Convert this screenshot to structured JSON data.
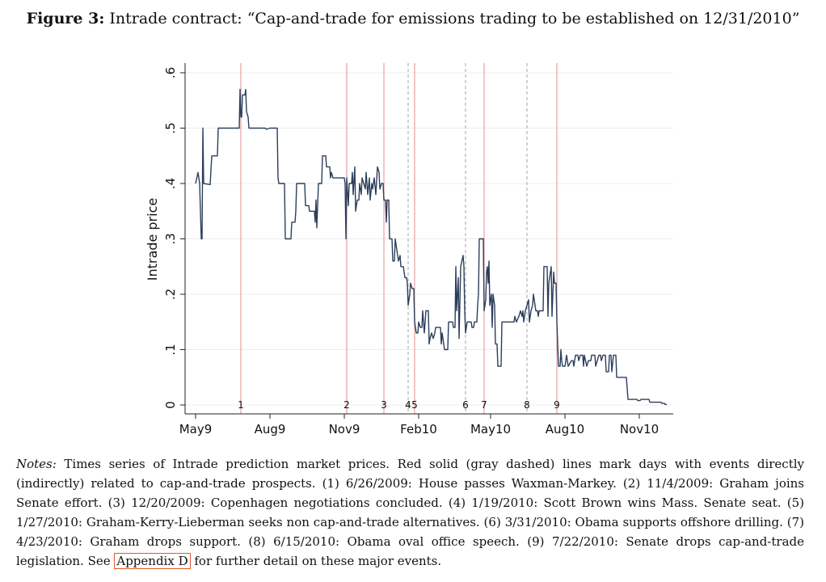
{
  "caption": {
    "label": "Figure 3:",
    "text": "Intrade contract: “Cap-and-trade for emissions trading to be established on 12/31/2010”"
  },
  "chart_data": {
    "type": "line",
    "ylabel": "Intrade price",
    "xlabel": "",
    "ylim": [
      0,
      0.62
    ],
    "yticks": [
      0,
      0.1,
      0.2,
      0.3,
      0.4,
      0.5,
      0.6
    ],
    "ytick_labels": [
      "0",
      ".1",
      ".2",
      ".3",
      ".4",
      ".5",
      ".6"
    ],
    "xlim": [
      0,
      590
    ],
    "xticks": [
      {
        "label": "May9",
        "day": 0
      },
      {
        "label": "Aug9",
        "day": 92
      },
      {
        "label": "Nov9",
        "day": 184
      },
      {
        "label": "Feb10",
        "day": 276
      },
      {
        "label": "May10",
        "day": 365
      },
      {
        "label": "Aug10",
        "day": 457
      },
      {
        "label": "Nov10",
        "day": 549
      }
    ],
    "events": [
      {
        "label": "1",
        "day": 56,
        "style": "solid",
        "color": "#e8a0a0"
      },
      {
        "label": "2",
        "day": 187,
        "style": "solid",
        "color": "#e8a0a0"
      },
      {
        "label": "3",
        "day": 233,
        "style": "solid",
        "color": "#e8a0a0"
      },
      {
        "label": "4",
        "day": 263,
        "style": "dashed",
        "color": "#b4b4b4"
      },
      {
        "label": "5",
        "day": 271,
        "style": "solid",
        "color": "#e8a0a0"
      },
      {
        "label": "6",
        "day": 334,
        "style": "dashed",
        "color": "#b4b4b4"
      },
      {
        "label": "7",
        "day": 357,
        "style": "solid",
        "color": "#e8a0a0"
      },
      {
        "label": "8",
        "day": 410,
        "style": "dashed",
        "color": "#b4b4b4"
      },
      {
        "label": "9",
        "day": 447,
        "style": "solid",
        "color": "#e8a0a0"
      }
    ],
    "line_color": "#2c3e5c",
    "series": [
      {
        "name": "Intrade price",
        "points": [
          [
            0,
            0.4
          ],
          [
            3,
            0.42
          ],
          [
            5,
            0.4
          ],
          [
            7,
            0.3
          ],
          [
            8,
            0.3
          ],
          [
            9,
            0.5
          ],
          [
            10,
            0.4
          ],
          [
            18,
            0.398
          ],
          [
            20,
            0.45
          ],
          [
            27,
            0.45
          ],
          [
            28,
            0.5
          ],
          [
            45,
            0.5
          ],
          [
            48,
            0.5
          ],
          [
            54,
            0.5
          ],
          [
            55,
            0.57
          ],
          [
            56,
            0.52
          ],
          [
            57,
            0.52
          ],
          [
            58,
            0.56
          ],
          [
            61,
            0.56
          ],
          [
            62,
            0.57
          ],
          [
            63,
            0.53
          ],
          [
            65,
            0.52
          ],
          [
            66,
            0.5
          ],
          [
            86,
            0.5
          ],
          [
            88,
            0.498
          ],
          [
            92,
            0.5
          ],
          [
            101,
            0.5
          ],
          [
            102,
            0.41
          ],
          [
            103,
            0.4
          ],
          [
            110,
            0.4
          ],
          [
            111,
            0.3
          ],
          [
            118,
            0.3
          ],
          [
            119,
            0.33
          ],
          [
            123,
            0.33
          ],
          [
            124,
            0.35
          ],
          [
            125,
            0.4
          ],
          [
            135,
            0.4
          ],
          [
            136,
            0.36
          ],
          [
            140,
            0.36
          ],
          [
            141,
            0.35
          ],
          [
            147,
            0.35
          ],
          [
            148,
            0.33
          ],
          [
            149,
            0.37
          ],
          [
            150,
            0.32
          ],
          [
            152,
            0.4
          ],
          [
            156,
            0.4
          ],
          [
            157,
            0.45
          ],
          [
            161,
            0.45
          ],
          [
            162,
            0.43
          ],
          [
            166,
            0.43
          ],
          [
            167,
            0.41
          ],
          [
            168,
            0.42
          ],
          [
            170,
            0.41
          ],
          [
            184,
            0.41
          ],
          [
            185,
            0.4
          ],
          [
            186,
            0.3
          ],
          [
            187,
            0.41
          ],
          [
            189,
            0.36
          ],
          [
            190,
            0.4
          ],
          [
            193,
            0.4
          ],
          [
            194,
            0.42
          ],
          [
            195,
            0.38
          ],
          [
            197,
            0.43
          ],
          [
            198,
            0.35
          ],
          [
            200,
            0.37
          ],
          [
            202,
            0.37
          ],
          [
            203,
            0.4
          ],
          [
            205,
            0.38
          ],
          [
            206,
            0.41
          ],
          [
            210,
            0.39
          ],
          [
            211,
            0.42
          ],
          [
            213,
            0.38
          ],
          [
            215,
            0.41
          ],
          [
            216,
            0.37
          ],
          [
            218,
            0.4
          ],
          [
            219,
            0.39
          ],
          [
            221,
            0.41
          ],
          [
            223,
            0.38
          ],
          [
            225,
            0.43
          ],
          [
            227,
            0.42
          ],
          [
            228,
            0.39
          ],
          [
            230,
            0.4
          ],
          [
            232,
            0.4
          ],
          [
            233,
            0.37
          ],
          [
            235,
            0.37
          ],
          [
            236,
            0.33
          ],
          [
            237,
            0.37
          ],
          [
            239,
            0.37
          ],
          [
            240,
            0.3
          ],
          [
            243,
            0.3
          ],
          [
            244,
            0.26
          ],
          [
            246,
            0.26
          ],
          [
            247,
            0.3
          ],
          [
            249,
            0.28
          ],
          [
            251,
            0.26
          ],
          [
            253,
            0.27
          ],
          [
            254,
            0.25
          ],
          [
            257,
            0.25
          ],
          [
            259,
            0.23
          ],
          [
            261,
            0.23
          ],
          [
            262,
            0.22
          ],
          [
            263,
            0.18
          ],
          [
            265,
            0.2
          ],
          [
            266,
            0.22
          ],
          [
            268,
            0.21
          ],
          [
            270,
            0.21
          ],
          [
            271,
            0.15
          ],
          [
            273,
            0.13
          ],
          [
            275,
            0.13
          ],
          [
            276,
            0.15
          ],
          [
            278,
            0.14
          ],
          [
            280,
            0.14
          ],
          [
            281,
            0.17
          ],
          [
            283,
            0.13
          ],
          [
            285,
            0.17
          ],
          [
            288,
            0.17
          ],
          [
            289,
            0.11
          ],
          [
            290,
            0.12
          ],
          [
            292,
            0.13
          ],
          [
            294,
            0.12
          ],
          [
            296,
            0.13
          ],
          [
            297,
            0.14
          ],
          [
            303,
            0.14
          ],
          [
            304,
            0.11
          ],
          [
            305,
            0.13
          ],
          [
            308,
            0.1
          ],
          [
            312,
            0.1
          ],
          [
            313,
            0.15
          ],
          [
            318,
            0.15
          ],
          [
            319,
            0.14
          ],
          [
            321,
            0.14
          ],
          [
            322,
            0.25
          ],
          [
            323,
            0.17
          ],
          [
            325,
            0.23
          ],
          [
            326,
            0.12
          ],
          [
            328,
            0.25
          ],
          [
            331,
            0.27
          ],
          [
            332,
            0.25
          ],
          [
            333,
            0.17
          ],
          [
            334,
            0.13
          ],
          [
            336,
            0.15
          ],
          [
            341,
            0.15
          ],
          [
            342,
            0.14
          ],
          [
            344,
            0.14
          ],
          [
            345,
            0.15
          ],
          [
            348,
            0.15
          ],
          [
            349,
            0.18
          ],
          [
            350,
            0.2
          ],
          [
            351,
            0.3
          ],
          [
            356,
            0.3
          ],
          [
            357,
            0.17
          ],
          [
            359,
            0.19
          ],
          [
            360,
            0.24
          ],
          [
            361,
            0.25
          ],
          [
            362,
            0.22
          ],
          [
            363,
            0.26
          ],
          [
            364,
            0.18
          ],
          [
            366,
            0.2
          ],
          [
            367,
            0.14
          ],
          [
            368,
            0.2
          ],
          [
            370,
            0.18
          ],
          [
            371,
            0.11
          ],
          [
            373,
            0.11
          ],
          [
            374,
            0.07
          ],
          [
            378,
            0.07
          ],
          [
            379,
            0.15
          ],
          [
            385,
            0.15
          ],
          [
            387,
            0.15
          ],
          [
            394,
            0.15
          ],
          [
            395,
            0.16
          ],
          [
            397,
            0.15
          ],
          [
            400,
            0.16
          ],
          [
            402,
            0.17
          ],
          [
            404,
            0.16
          ],
          [
            405,
            0.17
          ],
          [
            406,
            0.15
          ],
          [
            408,
            0.17
          ],
          [
            412,
            0.19
          ],
          [
            413,
            0.15
          ],
          [
            415,
            0.17
          ],
          [
            417,
            0.18
          ],
          [
            418,
            0.2
          ],
          [
            421,
            0.17
          ],
          [
            423,
            0.17
          ],
          [
            424,
            0.16
          ],
          [
            425,
            0.17
          ],
          [
            430,
            0.17
          ],
          [
            431,
            0.25
          ],
          [
            435,
            0.25
          ],
          [
            436,
            0.16
          ],
          [
            437,
            0.22
          ],
          [
            440,
            0.25
          ],
          [
            441,
            0.16
          ],
          [
            443,
            0.24
          ],
          [
            444,
            0.22
          ],
          [
            446,
            0.22
          ],
          [
            447,
            0.15
          ],
          [
            449,
            0.07
          ],
          [
            451,
            0.07
          ],
          [
            452,
            0.1
          ],
          [
            453,
            0.08
          ],
          [
            454,
            0.07
          ],
          [
            457,
            0.07
          ],
          [
            459,
            0.09
          ],
          [
            461,
            0.07
          ],
          [
            465,
            0.08
          ],
          [
            467,
            0.08
          ],
          [
            468,
            0.07
          ],
          [
            470,
            0.09
          ],
          [
            473,
            0.09
          ],
          [
            474,
            0.08
          ],
          [
            476,
            0.09
          ],
          [
            479,
            0.09
          ],
          [
            480,
            0.07
          ],
          [
            481,
            0.09
          ],
          [
            484,
            0.07
          ],
          [
            486,
            0.08
          ],
          [
            489,
            0.08
          ],
          [
            490,
            0.09
          ],
          [
            494,
            0.09
          ],
          [
            495,
            0.07
          ],
          [
            497,
            0.08
          ],
          [
            499,
            0.09
          ],
          [
            501,
            0.09
          ],
          [
            502,
            0.08
          ],
          [
            504,
            0.09
          ],
          [
            507,
            0.09
          ],
          [
            508,
            0.06
          ],
          [
            511,
            0.06
          ],
          [
            512,
            0.09
          ],
          [
            514,
            0.09
          ],
          [
            515,
            0.06
          ],
          [
            517,
            0.09
          ],
          [
            520,
            0.09
          ],
          [
            521,
            0.05
          ],
          [
            533,
            0.05
          ],
          [
            535,
            0.01
          ],
          [
            546,
            0.01
          ],
          [
            547,
            0.008
          ],
          [
            550,
            0.008
          ],
          [
            551,
            0.01
          ],
          [
            561,
            0.01
          ],
          [
            562,
            0.005
          ],
          [
            576,
            0.005
          ],
          [
            577,
            0.003
          ],
          [
            580,
            0.003
          ],
          [
            581,
            0.001
          ],
          [
            583,
            0.001
          ]
        ]
      }
    ]
  },
  "notes": {
    "label": "Notes:",
    "text_before_link": " Times series of Intrade prediction market prices. Red solid (gray dashed) lines mark days with events directly (indirectly) related to cap-and-trade prospects. (1) 6/26/2009: House passes Waxman-Markey. (2) 11/4/2009: Graham joins Senate effort. (3) 12/20/2009: Copenhagen negotiations concluded. (4) 1/19/2010: Scott Brown wins Mass. Senate seat. (5) 1/27/2010: Graham-Kerry-Lieberman seeks non cap-and-trade alternatives. (6) 3/31/2010: Obama supports offshore drilling. (7) 4/23/2010: Graham drops support. (8) 6/15/2010: Obama oval office speech. (9) 7/22/2010: Senate drops cap-and-trade legislation. See ",
    "link_text": "Appendix D",
    "text_after_link": " for further detail on these major events."
  }
}
